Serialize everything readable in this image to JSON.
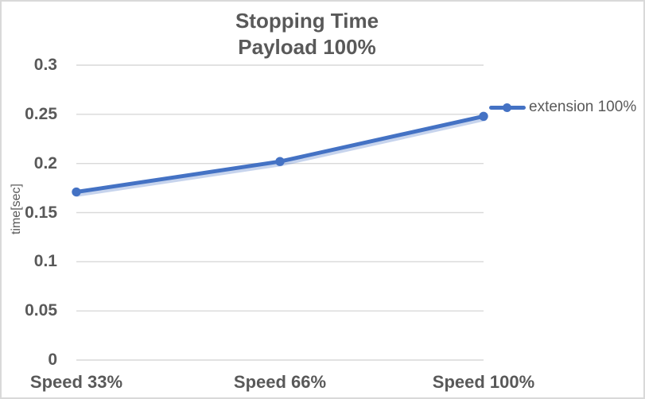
{
  "title": {
    "line1": "Stopping Time",
    "line2": "Payload 100%"
  },
  "legend": {
    "label": "extension 100%"
  },
  "chart_data": {
    "type": "line",
    "title": "Stopping Time",
    "subtitle": "Payload 100%",
    "categories": [
      "Speed 33%",
      "Speed 66%",
      "Speed 100%"
    ],
    "series": [
      {
        "name": "extension 100%",
        "values": [
          0.171,
          0.202,
          0.248
        ],
        "marker": "circle"
      }
    ],
    "xlabel": "",
    "ylabel": "time[sec]",
    "ylim": [
      0,
      0.3
    ],
    "yticks": [
      0,
      0.05,
      0.1,
      0.15,
      0.2,
      0.25,
      0.3
    ],
    "ytick_labels": [
      "0",
      "0.05",
      "0.1",
      "0.15",
      "0.2",
      "0.25",
      "0.3"
    ],
    "grid": true,
    "legend_position": "right"
  },
  "colors": {
    "line": "#4472C4",
    "line_shadow": "rgba(68,114,196,0.30)",
    "grid": "#D9D9D9",
    "text": "#595959",
    "border": "#D9D9D9",
    "background": "#FFFFFF"
  }
}
